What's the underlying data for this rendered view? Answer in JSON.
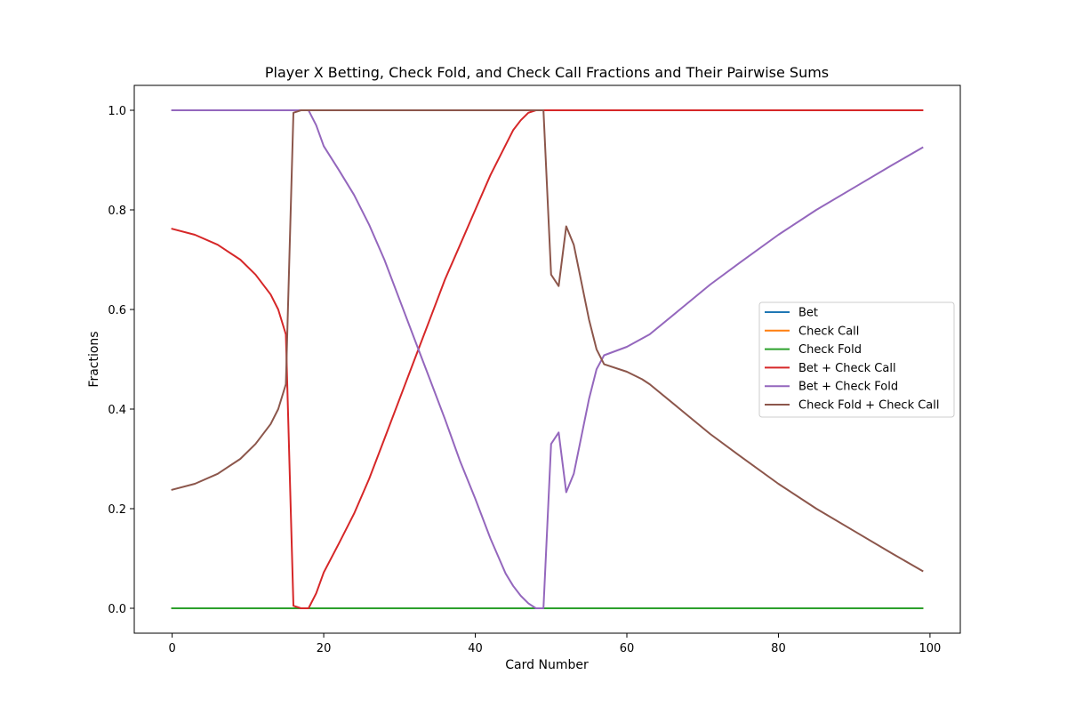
{
  "chart_data": {
    "type": "line",
    "title": "Player X Betting, Check Fold, and Check Call Fractions and Their Pairwise Sums",
    "xlabel": "Card Number",
    "ylabel": "Fractions",
    "xlim": [
      -5,
      104
    ],
    "ylim": [
      -0.05,
      1.05
    ],
    "xticks": [
      0,
      20,
      40,
      60,
      80,
      100
    ],
    "yticks": [
      0.0,
      0.2,
      0.4,
      0.6,
      0.8,
      1.0
    ],
    "xtick_labels": [
      "0",
      "20",
      "40",
      "60",
      "80",
      "100"
    ],
    "ytick_labels": [
      "0.0",
      "0.2",
      "0.4",
      "0.6",
      "0.8",
      "1.0"
    ],
    "grid": false,
    "legend_position": "center-right",
    "series": [
      {
        "name": "Bet",
        "color": "#1f77b4",
        "x": [
          0,
          16,
          17,
          18,
          20,
          25,
          30,
          35,
          40,
          45,
          48,
          49,
          60,
          80,
          99
        ],
        "y": [
          0,
          0,
          0,
          0,
          0,
          0,
          0,
          0,
          0,
          0,
          0,
          0,
          0,
          0,
          0
        ]
      },
      {
        "name": "Check Call",
        "color": "#ff7f0e",
        "x": [
          0,
          5,
          10,
          15,
          16,
          17,
          18,
          30,
          49,
          60,
          80,
          99
        ],
        "y": [
          0,
          0,
          0,
          0,
          0,
          0,
          0,
          0,
          0,
          0,
          0,
          0
        ]
      },
      {
        "name": "Check Fold",
        "color": "#2ca02c",
        "x": [
          0,
          16,
          17,
          18,
          30,
          45,
          48,
          49,
          55,
          60,
          70,
          80,
          90,
          99
        ],
        "y": [
          0,
          0,
          0,
          0,
          0,
          0,
          0,
          0,
          0,
          0,
          0,
          0,
          0,
          0
        ]
      },
      {
        "name": "Bet + Check Call",
        "color": "#d62728",
        "x": [
          0,
          3,
          6,
          9,
          11,
          13,
          14,
          15,
          16,
          17,
          18,
          19,
          20,
          22,
          24,
          26,
          28,
          30,
          32,
          34,
          36,
          38,
          40,
          42,
          44,
          45,
          46,
          47,
          48,
          49,
          60,
          80,
          99
        ],
        "y": [
          0.762,
          0.75,
          0.73,
          0.7,
          0.67,
          0.63,
          0.6,
          0.55,
          0.005,
          0.0,
          0.0,
          0.03,
          0.072,
          0.13,
          0.19,
          0.26,
          0.34,
          0.42,
          0.5,
          0.58,
          0.66,
          0.73,
          0.8,
          0.87,
          0.93,
          0.96,
          0.98,
          0.995,
          1.0,
          1.0,
          1.0,
          1.0,
          1.0
        ]
      },
      {
        "name": "Bet + Check Fold",
        "color": "#9467bd",
        "x": [
          0,
          10,
          16,
          17,
          18,
          19,
          20,
          22,
          24,
          26,
          28,
          30,
          32,
          34,
          36,
          38,
          40,
          42,
          44,
          45,
          46,
          47,
          48,
          49,
          50,
          51,
          52,
          53,
          55,
          56,
          57,
          60,
          63,
          67,
          71,
          75,
          80,
          85,
          90,
          95,
          99
        ],
        "y": [
          1.0,
          1.0,
          1.0,
          1.0,
          1.0,
          0.97,
          0.928,
          0.88,
          0.83,
          0.77,
          0.7,
          0.62,
          0.54,
          0.46,
          0.38,
          0.295,
          0.22,
          0.14,
          0.07,
          0.045,
          0.025,
          0.01,
          0.0,
          0.0,
          0.33,
          0.353,
          0.233,
          0.27,
          0.42,
          0.48,
          0.508,
          0.525,
          0.55,
          0.6,
          0.65,
          0.695,
          0.75,
          0.8,
          0.845,
          0.89,
          0.925
        ]
      },
      {
        "name": "Check Fold + Check Call",
        "color": "#8c564b",
        "x": [
          0,
          3,
          6,
          9,
          11,
          13,
          14,
          15,
          16,
          17,
          18,
          20,
          30,
          40,
          48,
          49,
          50,
          51,
          52,
          53,
          55,
          56,
          57,
          60,
          62,
          63,
          67,
          71,
          75,
          80,
          85,
          90,
          95,
          99
        ],
        "y": [
          0.238,
          0.25,
          0.27,
          0.3,
          0.33,
          0.37,
          0.4,
          0.45,
          0.995,
          1.0,
          1.0,
          1.0,
          1.0,
          1.0,
          1.0,
          1.0,
          0.67,
          0.647,
          0.767,
          0.73,
          0.58,
          0.52,
          0.49,
          0.475,
          0.46,
          0.45,
          0.4,
          0.35,
          0.305,
          0.25,
          0.2,
          0.155,
          0.11,
          0.075
        ]
      }
    ]
  }
}
